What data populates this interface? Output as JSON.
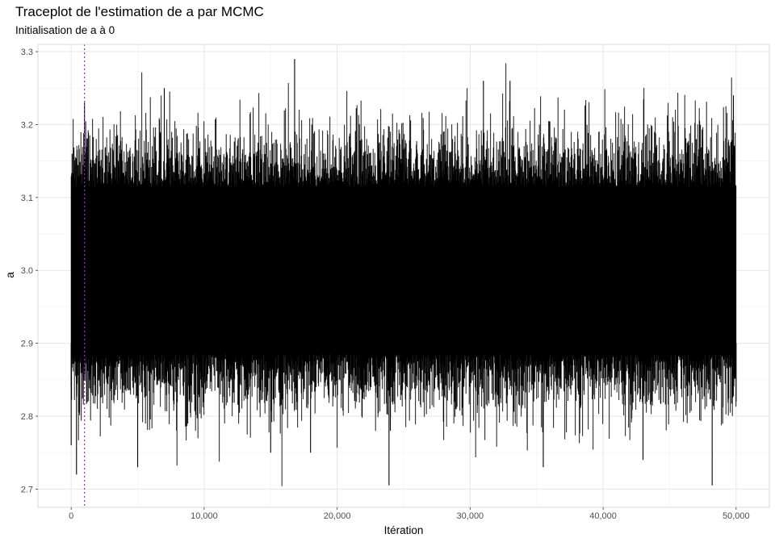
{
  "chart_data": {
    "type": "line",
    "title": "Traceplot de l'estimation de a par MCMC",
    "subtitle": "Initialisation de a à 0",
    "xlabel": "Itération",
    "ylabel": "a",
    "xlim": [
      -2500,
      52500
    ],
    "ylim": [
      2.675,
      3.31
    ],
    "xticks": [
      0,
      10000,
      20000,
      30000,
      40000,
      50000
    ],
    "xtick_labels": [
      "0",
      "10,000",
      "20,000",
      "30,000",
      "40,000",
      "50,000"
    ],
    "yticks": [
      2.7,
      2.8,
      2.9,
      3.0,
      3.1,
      3.2,
      3.3
    ],
    "ytick_labels": [
      "2.7",
      "2.8",
      "2.9",
      "3.0",
      "3.1",
      "3.2",
      "3.3"
    ],
    "grid": true,
    "legend": "none",
    "series": [
      {
        "color": "#000000",
        "n_iterations": 50000,
        "mean": 3.0,
        "sd": 0.05,
        "x": [
          0,
          70,
          400,
          1000,
          1200,
          5000,
          7000,
          15000,
          16800,
          18000,
          20000,
          23900,
          24000,
          25000,
          30000,
          31000,
          33000,
          35500,
          40000,
          43000,
          47000,
          48200,
          49800,
          50000
        ],
        "values": [
          2.76,
          3.16,
          2.72,
          3.23,
          2.82,
          2.73,
          3.25,
          2.75,
          3.29,
          2.75,
          3.12,
          2.705,
          2.78,
          3.05,
          3.0,
          3.26,
          3.26,
          2.73,
          3.0,
          2.74,
          3.18,
          2.705,
          3.24,
          2.82
        ]
      }
    ],
    "annotations": [
      {
        "type": "vline",
        "x": 1000,
        "color": "#a020f0",
        "style": "dotted"
      }
    ]
  }
}
